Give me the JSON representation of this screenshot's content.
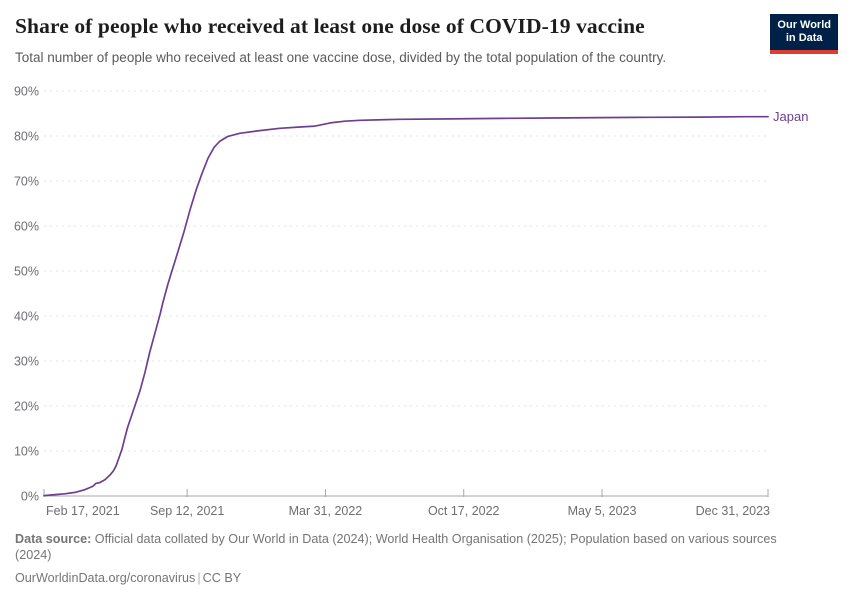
{
  "header": {
    "title": "Share of people who received at least one dose of COVID-19 vaccine",
    "subtitle": "Total number of people who received at least one vaccine dose, divided by the total population of the country.",
    "logo_line1": "Our World",
    "logo_line2": "in Data"
  },
  "chart_data": {
    "type": "line",
    "title": "Share of people who received at least one dose of COVID-19 vaccine",
    "xlabel": "",
    "ylabel": "",
    "ylim": [
      0,
      90
    ],
    "grid": "horizontal-dashed",
    "legend_position": "end-of-line",
    "x_range": [
      "2021-02-17",
      "2023-12-31"
    ],
    "y_ticks": [
      {
        "value": 0,
        "label": "0%"
      },
      {
        "value": 10,
        "label": "10%"
      },
      {
        "value": 20,
        "label": "20%"
      },
      {
        "value": 30,
        "label": "30%"
      },
      {
        "value": 40,
        "label": "40%"
      },
      {
        "value": 50,
        "label": "50%"
      },
      {
        "value": 60,
        "label": "60%"
      },
      {
        "value": 70,
        "label": "70%"
      },
      {
        "value": 80,
        "label": "80%"
      },
      {
        "value": 90,
        "label": "90%"
      }
    ],
    "x_ticks": [
      {
        "date": "2021-02-17",
        "label": "Feb 17, 2021"
      },
      {
        "date": "2021-09-12",
        "label": "Sep 12, 2021"
      },
      {
        "date": "2022-03-31",
        "label": "Mar 31, 2022"
      },
      {
        "date": "2022-10-17",
        "label": "Oct 17, 2022"
      },
      {
        "date": "2023-05-05",
        "label": "May 5, 2023"
      },
      {
        "date": "2023-12-31",
        "label": "Dec 31, 2023"
      }
    ],
    "series": [
      {
        "name": "Japan",
        "color": "#6d3e91",
        "points": [
          [
            "2021-02-17",
            0.1
          ],
          [
            "2021-03-05",
            0.3
          ],
          [
            "2021-03-19",
            0.5
          ],
          [
            "2021-04-03",
            0.8
          ],
          [
            "2021-04-17",
            1.4
          ],
          [
            "2021-04-25",
            1.9
          ],
          [
            "2021-04-29",
            2.2
          ],
          [
            "2021-05-03",
            2.8
          ],
          [
            "2021-05-09",
            3.0
          ],
          [
            "2021-05-16",
            3.6
          ],
          [
            "2021-05-23",
            4.6
          ],
          [
            "2021-05-28",
            5.5
          ],
          [
            "2021-06-01",
            6.6
          ],
          [
            "2021-06-05",
            8.3
          ],
          [
            "2021-06-10",
            10.5
          ],
          [
            "2021-06-14",
            13.0
          ],
          [
            "2021-06-18",
            15.3
          ],
          [
            "2021-06-24",
            18.0
          ],
          [
            "2021-06-29",
            20.3
          ],
          [
            "2021-07-06",
            23.5
          ],
          [
            "2021-07-13",
            27.5
          ],
          [
            "2021-07-20",
            32.0
          ],
          [
            "2021-07-28",
            36.5
          ],
          [
            "2021-08-04",
            40.5
          ],
          [
            "2021-08-08",
            43.0
          ],
          [
            "2021-08-15",
            47.0
          ],
          [
            "2021-08-21",
            50.0
          ],
          [
            "2021-08-30",
            54.5
          ],
          [
            "2021-09-07",
            58.5
          ],
          [
            "2021-09-16",
            63.5
          ],
          [
            "2021-09-25",
            68.0
          ],
          [
            "2021-10-03",
            71.5
          ],
          [
            "2021-10-12",
            75.0
          ],
          [
            "2021-10-21",
            77.5
          ],
          [
            "2021-10-29",
            78.8
          ],
          [
            "2021-11-10",
            79.9
          ],
          [
            "2021-11-27",
            80.6
          ],
          [
            "2021-12-26",
            81.2
          ],
          [
            "2022-01-24",
            81.7
          ],
          [
            "2022-02-22",
            82.0
          ],
          [
            "2022-03-16",
            82.2
          ],
          [
            "2022-04-07",
            82.9
          ],
          [
            "2022-04-28",
            83.3
          ],
          [
            "2022-05-20",
            83.5
          ],
          [
            "2022-07-17",
            83.7
          ],
          [
            "2022-09-27",
            83.8
          ],
          [
            "2022-12-08",
            83.9
          ],
          [
            "2023-02-19",
            84.0
          ],
          [
            "2023-05-02",
            84.1
          ],
          [
            "2023-07-13",
            84.15
          ],
          [
            "2023-09-24",
            84.2
          ],
          [
            "2023-11-28",
            84.3
          ],
          [
            "2023-12-31",
            84.3
          ]
        ]
      }
    ]
  },
  "footer": {
    "source_label": "Data source:",
    "source_text": "Official data collated by Our World in Data (2024); World Health Organisation (2025); Population based on various sources (2024)",
    "license_url": "OurWorldinData.org/coronavirus",
    "license_sep": "|",
    "license_name": "CC BY"
  },
  "colors": {
    "line": "#6d3e91",
    "grid": "#e3e3e3",
    "axis": "#a7a7a7",
    "tick_label": "#6e6e73",
    "logo_bg": "#002147",
    "logo_accent": "#dc3e32"
  }
}
